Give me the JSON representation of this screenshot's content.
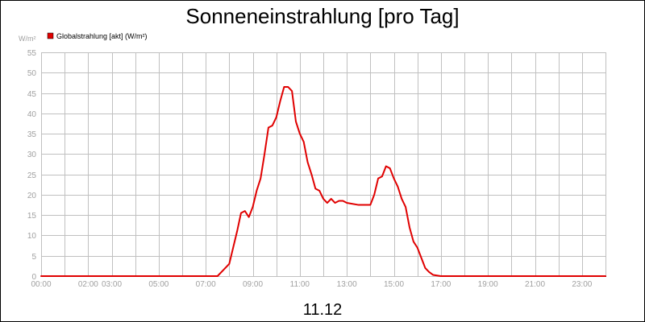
{
  "chart_data": {
    "type": "line",
    "title": "Sonneneinstrahlung [pro Tag]",
    "subtitle": "11.12",
    "ylabel": "W/m²",
    "xlabel": "",
    "ylim": [
      0,
      55
    ],
    "xlim": [
      "00:00",
      "24:00"
    ],
    "yticks": [
      0,
      5,
      10,
      15,
      20,
      25,
      30,
      35,
      40,
      45,
      50,
      55
    ],
    "xticks": [
      "00:00",
      "02:00",
      "03:00",
      "05:00",
      "07:00",
      "09:00",
      "11:00",
      "13:00",
      "15:00",
      "17:00",
      "19:00",
      "21:00",
      "23:00"
    ],
    "grid": true,
    "legend_position": "top-left",
    "series": [
      {
        "name": "Globalstrahlung [akt] (W/m²)",
        "color": "#e00000",
        "x": [
          "00:00",
          "07:30",
          "07:45",
          "08:00",
          "08:10",
          "08:20",
          "08:30",
          "08:40",
          "08:50",
          "09:00",
          "09:10",
          "09:20",
          "09:30",
          "09:40",
          "09:50",
          "10:00",
          "10:05",
          "10:10",
          "10:20",
          "10:30",
          "10:40",
          "10:50",
          "11:00",
          "11:10",
          "11:20",
          "11:30",
          "11:40",
          "11:50",
          "12:00",
          "12:10",
          "12:20",
          "12:30",
          "12:40",
          "12:50",
          "13:00",
          "13:30",
          "14:00",
          "14:10",
          "14:20",
          "14:30",
          "14:40",
          "14:50",
          "15:00",
          "15:10",
          "15:20",
          "15:30",
          "15:40",
          "15:50",
          "16:00",
          "16:10",
          "16:20",
          "16:30",
          "16:40",
          "17:00",
          "24:00"
        ],
        "values": [
          0,
          0,
          1.5,
          3,
          7,
          11,
          15.5,
          16,
          14.5,
          17,
          21,
          24,
          30,
          36.5,
          37,
          39,
          41,
          43,
          46.5,
          46.5,
          45.5,
          38,
          35,
          33,
          28,
          25,
          21.5,
          21,
          19,
          18,
          19,
          18,
          18.5,
          18.5,
          18,
          17.5,
          17.5,
          20,
          24,
          24.5,
          27,
          26.5,
          24,
          22,
          19,
          17,
          12,
          8.5,
          7,
          4.5,
          2,
          1,
          0.3,
          0,
          0
        ]
      }
    ]
  }
}
